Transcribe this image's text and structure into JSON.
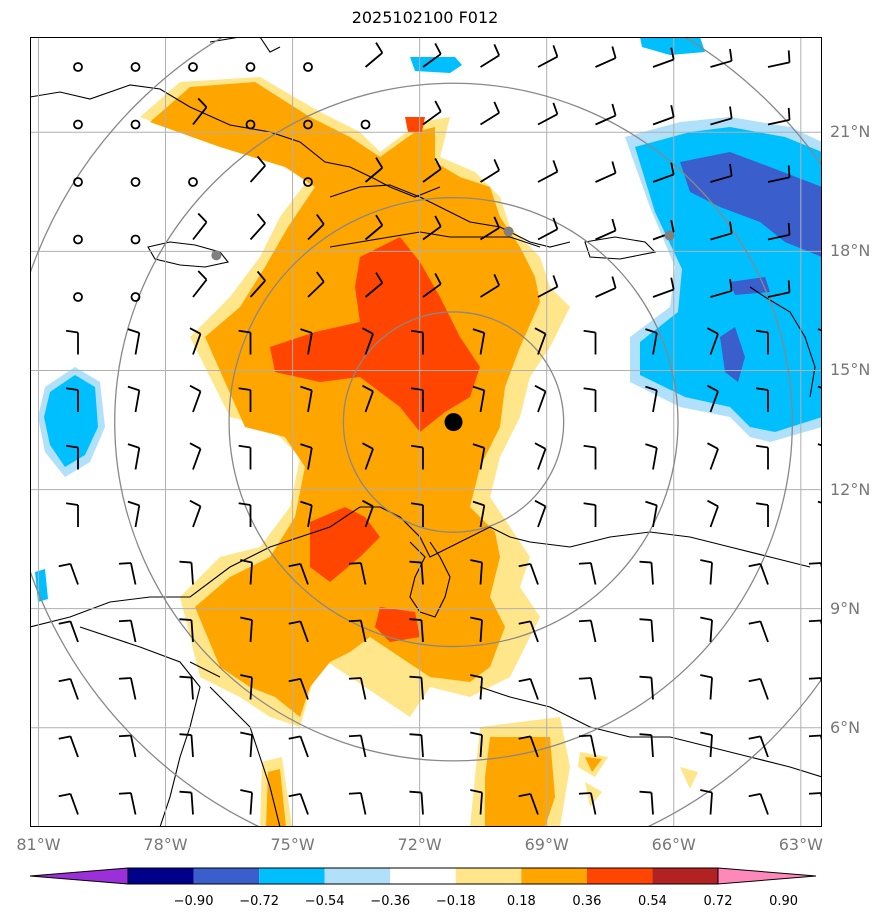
{
  "title": "2025102100 F012",
  "map": {
    "lon_range": [
      -81.2,
      -62.5
    ],
    "lat_range": [
      3.5,
      23.4
    ],
    "lat_ticks": [
      {
        "value": 21,
        "label": "21°N"
      },
      {
        "value": 18,
        "label": "18°N"
      },
      {
        "value": 15,
        "label": "15°N"
      },
      {
        "value": 12,
        "label": "12°N"
      },
      {
        "value": 9,
        "label": "9°N"
      },
      {
        "value": 6,
        "label": "6°N"
      }
    ],
    "lon_ticks": [
      {
        "value": -81,
        "label": "81°W"
      },
      {
        "value": -78,
        "label": "78°W"
      },
      {
        "value": -75,
        "label": "75°W"
      },
      {
        "value": -72,
        "label": "72°W"
      },
      {
        "value": -69,
        "label": "69°W"
      },
      {
        "value": -66,
        "label": "66°W"
      },
      {
        "value": -63,
        "label": "63°W"
      }
    ],
    "center_marker": {
      "lon": -71.2,
      "lat": 13.7
    },
    "range_rings_deg": [
      2.6,
      5.3,
      8.0,
      10.6
    ],
    "grey_dots": [
      {
        "lon": -76.8,
        "lat": 17.9
      },
      {
        "lon": -69.9,
        "lat": 18.5
      },
      {
        "lon": -66.1,
        "lat": 18.4
      }
    ]
  },
  "colorbar": {
    "colors": [
      "#9b30d9",
      "#00008b",
      "#3a5fcd",
      "#00bfff",
      "#b0e0fa",
      "#ffffff",
      "#ffe68a",
      "#ffa500",
      "#ff4500",
      "#b22222",
      "#ff88bb"
    ],
    "labels": [
      "−0.90",
      "−0.72",
      "−0.54",
      "−0.36",
      "−0.18",
      "0.18",
      "0.36",
      "0.54",
      "0.72",
      "0.90"
    ]
  },
  "colors": {
    "light_yellow": "#ffe68a",
    "orange": "#ffa500",
    "red_orange": "#ff4500",
    "deep_sky": "#00bfff",
    "light_blue": "#b0e0fa",
    "royal_blue": "#3a5fcd",
    "grid": "#b0b0b0",
    "rings": "#888888"
  }
}
